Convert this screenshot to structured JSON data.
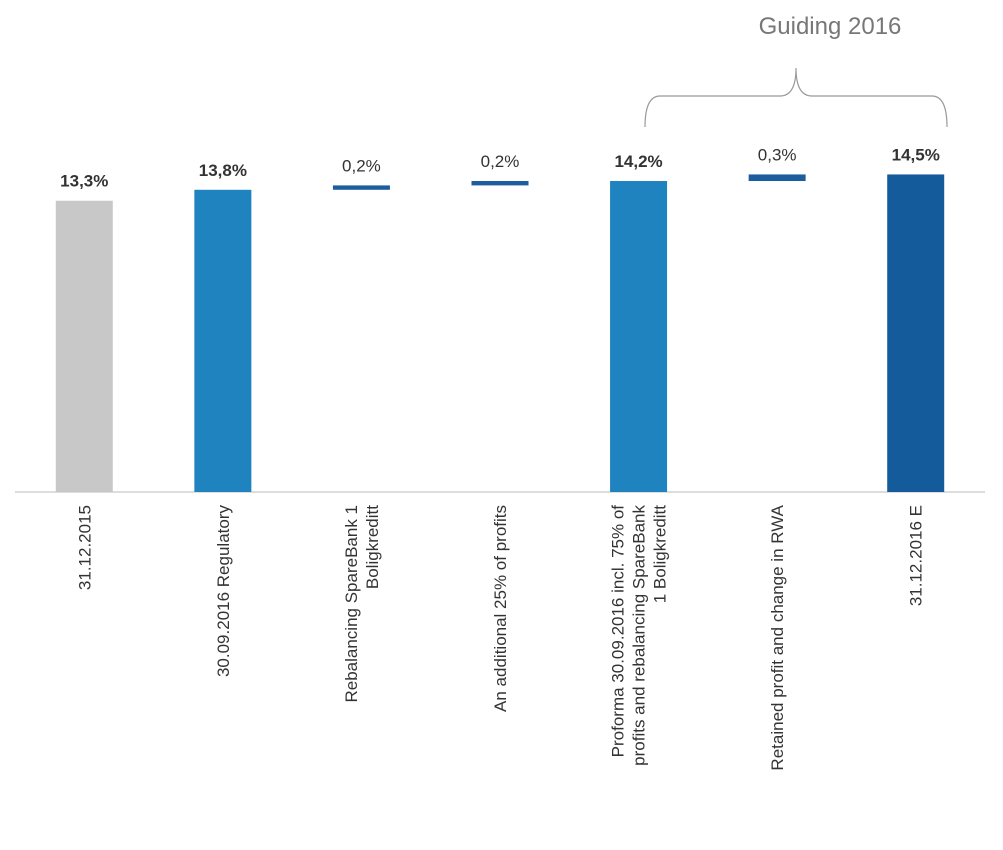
{
  "chart_data": {
    "type": "waterfall",
    "annotation": "Guiding 2016",
    "categories": [
      "31.12.2015",
      "30.09.2016 Regulatory",
      "Rebalancing SpareBank 1 Boligkreditt",
      "An additional 25% of profits",
      "Proforma 30.09.2016 incl. 75% of profits and rebalancing SpareBank 1 Boligkreditt",
      "Retained profit and change in RWA",
      "31.12.2016 E"
    ],
    "values": [
      13.3,
      13.8,
      0.2,
      0.2,
      14.2,
      0.3,
      14.5
    ],
    "value_labels": [
      "13,3%",
      "13,8%",
      "0,2%",
      "0,2%",
      "14,2%",
      "0,3%",
      "14,5%"
    ],
    "measures": [
      "total",
      "total",
      "relative",
      "relative",
      "total",
      "relative",
      "total"
    ],
    "colors": [
      "#c8c8c8",
      "#1f83bf",
      "#1d5d9e",
      "#1d5d9e",
      "#1f83bf",
      "#1d5d9e",
      "#135b9b"
    ],
    "ylim": [
      0,
      16
    ]
  }
}
